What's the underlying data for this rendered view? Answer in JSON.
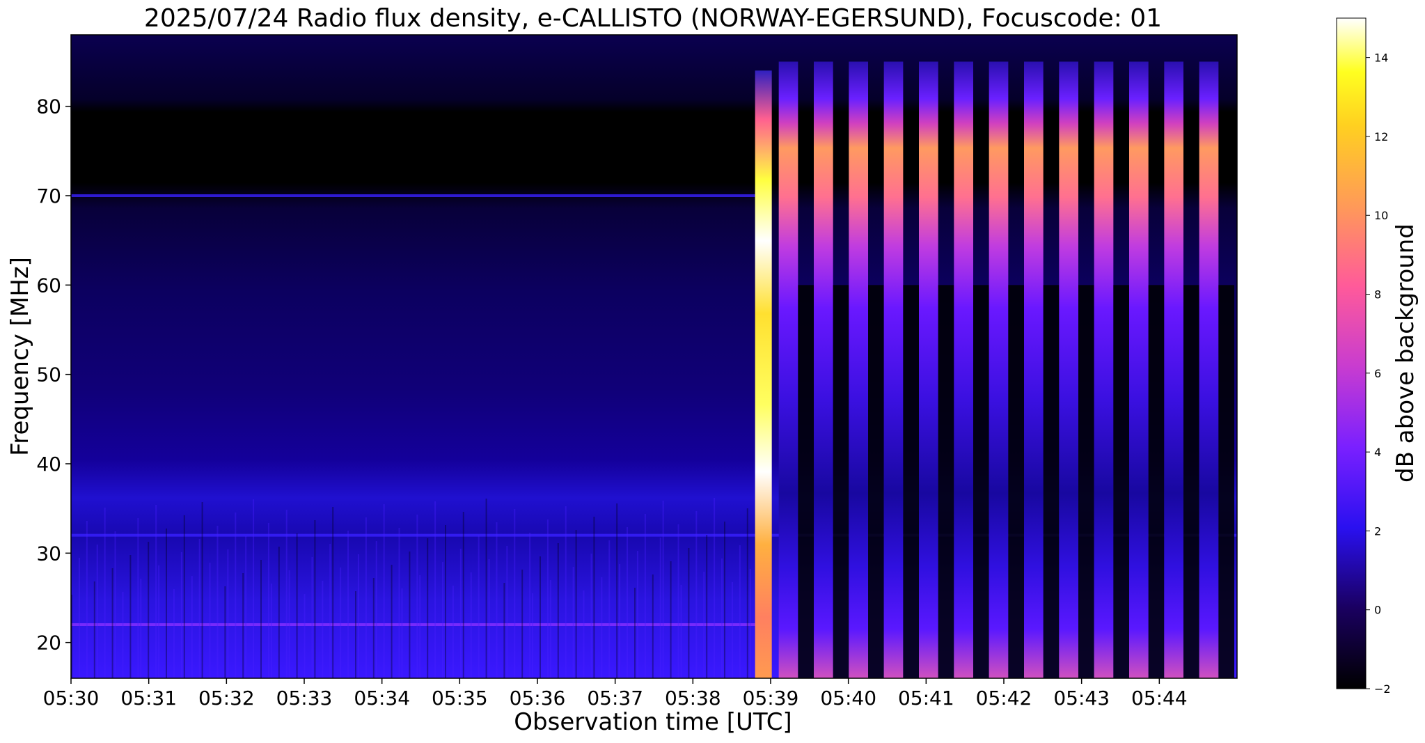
{
  "chart_data": {
    "type": "heatmap",
    "title": "2025/07/24  Radio flux density, e-CALLISTO (NORWAY-EGERSUND), Focuscode: 01",
    "xlabel": "Observation time [UTC]",
    "ylabel": "Frequency [MHz]",
    "x_range": [
      "05:30",
      "05:45"
    ],
    "ylim": [
      16,
      88
    ],
    "x_ticks": [
      "05:30",
      "05:31",
      "05:32",
      "05:33",
      "05:34",
      "05:35",
      "05:36",
      "05:37",
      "05:38",
      "05:39",
      "05:40",
      "05:41",
      "05:42",
      "05:43",
      "05:44"
    ],
    "y_ticks": [
      20,
      30,
      40,
      50,
      60,
      70,
      80
    ],
    "colorbar": {
      "label": "dB above background",
      "range": [
        -2,
        15
      ],
      "ticks": [
        -2,
        0,
        2,
        4,
        6,
        8,
        10,
        12,
        14
      ],
      "colormap": "gnuplot2",
      "colors": [
        "#000000",
        "#1a00c8",
        "#6a18ff",
        "#c13bd4",
        "#ff5c9e",
        "#ff9c5a",
        "#ffe010",
        "#ffffff"
      ]
    },
    "features": {
      "strong_burst_start": "05:38:48",
      "burst_freq_range_mhz": [
        16,
        84
      ],
      "repeating_pulses": 13,
      "horizontal_lines_mhz": [
        70,
        32,
        22
      ]
    }
  }
}
